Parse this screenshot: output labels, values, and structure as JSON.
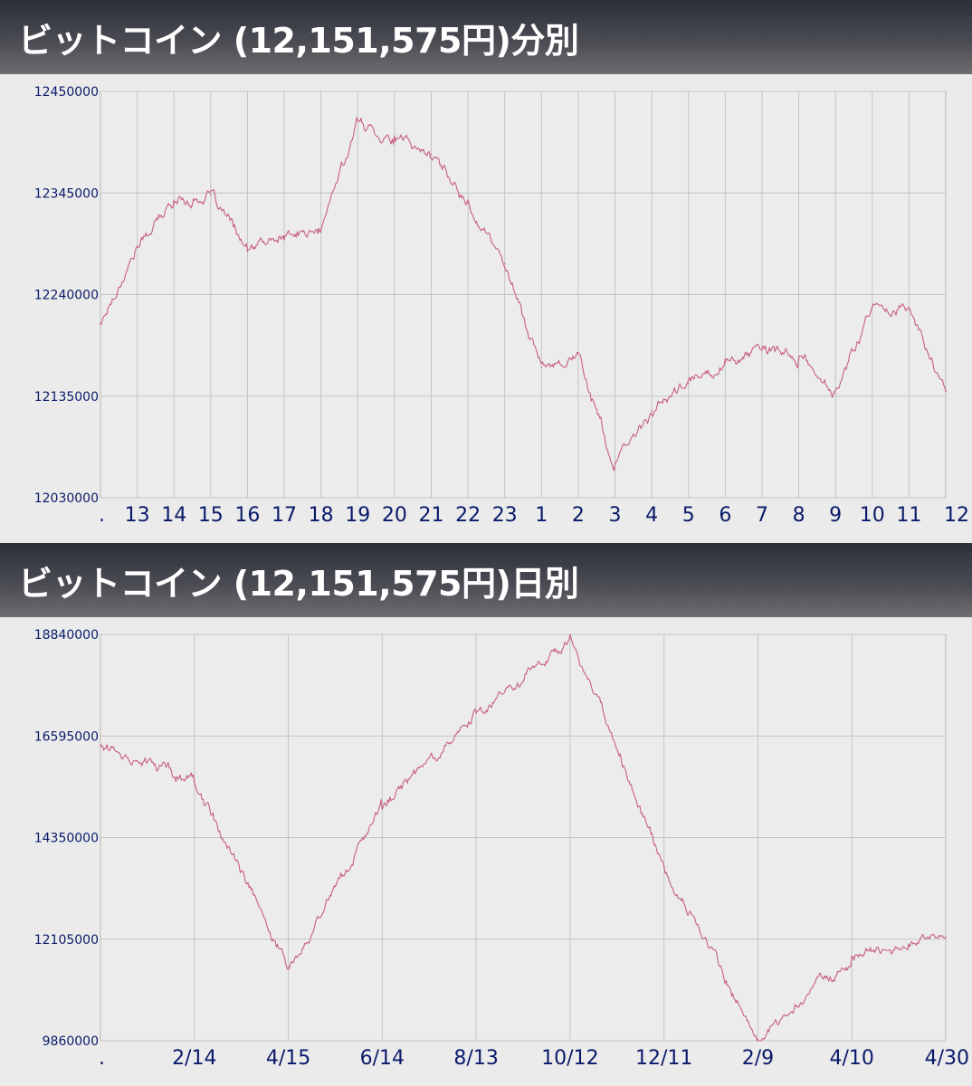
{
  "chart_data": [
    {
      "type": "line",
      "title": "ビットコイン (12,151,575円)分別",
      "y_ticks": [
        "12450000",
        "12345000",
        "12240000",
        "12135000",
        "12030000"
      ],
      "ylim": [
        12030000,
        12450000
      ],
      "x_ticks": [
        ".",
        "13",
        "14",
        "15",
        "16",
        "17",
        "18",
        "19",
        "20",
        "21",
        "22",
        "23",
        "1",
        "2",
        "3",
        "4",
        "5",
        "6",
        "7",
        "8",
        "9",
        "10",
        "11",
        "12"
      ],
      "grid": true,
      "line_color": "#c8607e",
      "series": [
        {
          "x": [
            ".",
            "13",
            "14",
            "15",
            "16",
            "17",
            "18",
            "19",
            "20",
            "21",
            "22",
            "23",
            "1",
            "2",
            "3",
            "4",
            "5",
            "6",
            "7",
            "8",
            "9",
            "10",
            "11",
            "12"
          ],
          "values": [
            12210000,
            12290000,
            12335000,
            12343000,
            12285000,
            12300000,
            12305000,
            12420000,
            12400000,
            12385000,
            12335000,
            12272000,
            12165000,
            12180000,
            12060000,
            12120000,
            12148000,
            12170000,
            12182000,
            12173000,
            12138000,
            12227000,
            12227000,
            12140000
          ]
        }
      ],
      "final_value": 12151575
    },
    {
      "type": "line",
      "title": "ビットコイン (12,151,575円)日別",
      "y_ticks": [
        "18840000",
        "16595000",
        "14350000",
        "12105000",
        "9860000"
      ],
      "ylim": [
        9860000,
        18840000
      ],
      "x_ticks": [
        ".",
        "2/14",
        "4/15",
        "6/14",
        "8/13",
        "10/12",
        "12/11",
        "2/9",
        "4/10",
        "4/30"
      ],
      "grid": true,
      "line_color": "#c8607e",
      "series": [
        {
          "x": [
            ".",
            "2/14",
            "4/15",
            "6/14",
            "8/13",
            "10/12",
            "12/11",
            "2/9",
            "4/10",
            "4/30"
          ],
          "values": [
            16400000,
            15600000,
            11500000,
            15000000,
            17100000,
            18800000,
            13700000,
            9900000,
            11700000,
            12150000
          ]
        }
      ],
      "final_value": 12151575
    }
  ]
}
